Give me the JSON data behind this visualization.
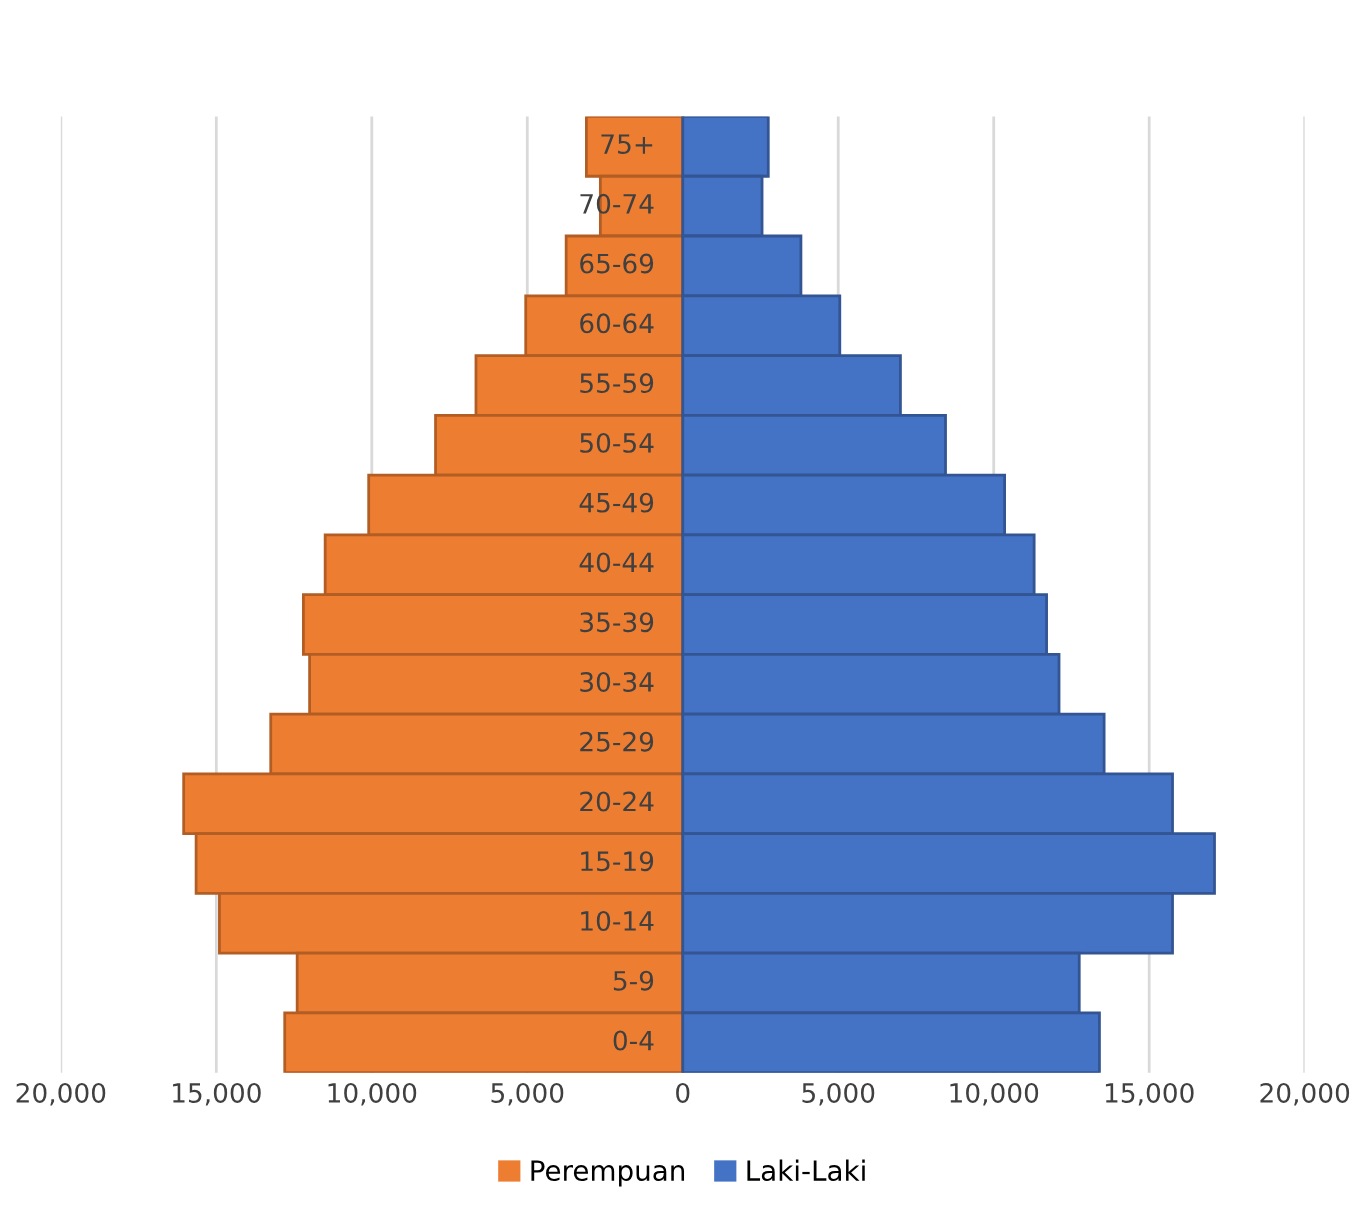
{
  "chart_data": {
    "type": "bar",
    "orientation": "horizontal",
    "stacked": true,
    "categories": [
      "75+",
      "70-74",
      "65-69",
      "60-64",
      "55-59",
      "50-54",
      "45-49",
      "40-44",
      "35-39",
      "30-34",
      "25-29",
      "20-24",
      "15-19",
      "10-14",
      "5-9",
      "0-4"
    ],
    "series": [
      {
        "name": "Perempuan",
        "color": "#ed7d31",
        "values": [
          -3100,
          -2650,
          -3750,
          -5050,
          -6650,
          -7950,
          -10100,
          -11500,
          -12200,
          -12000,
          -13250,
          -16050,
          -15650,
          -14900,
          -12400,
          -12800
        ]
      },
      {
        "name": "Laki-Laki",
        "color": "#4472c4",
        "values": [
          2750,
          2550,
          3800,
          5050,
          7000,
          8450,
          10350,
          11300,
          11700,
          12100,
          13550,
          15750,
          17100,
          15750,
          12750,
          13400
        ]
      }
    ],
    "xlim": [
      -20000,
      20000
    ],
    "xticks": [
      {
        "value": -20000,
        "label": "20,000"
      },
      {
        "value": -15000,
        "label": "15,000"
      },
      {
        "value": -10000,
        "label": "10,000"
      },
      {
        "value": -5000,
        "label": "5,000"
      },
      0,
      {
        "value": 5000,
        "label": "5,000"
      },
      {
        "value": 10000,
        "label": "10,000"
      },
      {
        "value": 15000,
        "label": "15,000"
      },
      {
        "value": 20000,
        "label": "20,000"
      }
    ],
    "grid": "x",
    "legend": "bottom"
  }
}
